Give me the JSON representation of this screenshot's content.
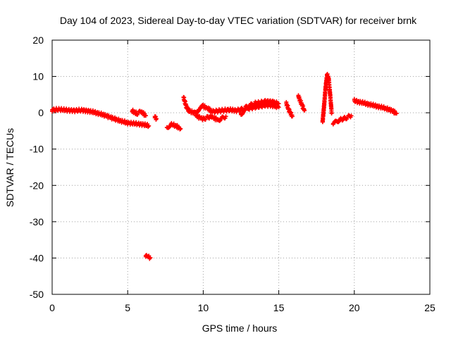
{
  "chart_data": {
    "type": "scatter",
    "title": "Day 104 of 2023, Sidereal Day-to-day VTEC variation (SDTVAR) for receiver brnk",
    "xlabel": "GPS time / hours",
    "ylabel": "SDTVAR / TECUs",
    "xlim": [
      0,
      25
    ],
    "ylim": [
      -50,
      20
    ],
    "xticks": [
      0,
      5,
      10,
      15,
      20,
      25
    ],
    "yticks": [
      -50,
      -40,
      -30,
      -20,
      -10,
      0,
      10,
      20
    ],
    "xtick_labels": [
      "0",
      "5",
      "10",
      "15",
      "20",
      "25"
    ],
    "ytick_labels": [
      "-50",
      "-40",
      "-30",
      "-20",
      "-10",
      "0",
      "10",
      "20"
    ],
    "grid": true,
    "marker": "plus",
    "series": [
      {
        "name": "SDTVAR",
        "color": "#ff0000",
        "segments": [
          {
            "x": [
              0.0,
              0.5,
              1.0,
              1.5,
              2.0,
              2.5,
              3.0,
              3.5,
              4.0,
              4.5,
              5.0,
              5.5,
              6.0,
              6.4
            ],
            "y": [
              0.8,
              0.9,
              0.7,
              0.6,
              0.7,
              0.4,
              -0.1,
              -0.7,
              -1.5,
              -2.2,
              -2.8,
              -3.0,
              -3.2,
              -3.6
            ]
          },
          {
            "x": [
              5.3,
              5.6,
              5.9,
              6.2
            ],
            "y": [
              0.5,
              -0.2,
              0.3,
              -0.8
            ]
          },
          {
            "x": [
              6.2,
              6.5
            ],
            "y": [
              -39.3,
              -39.9
            ]
          },
          {
            "x": [
              6.8,
              6.9
            ],
            "y": [
              -1.0,
              -1.6
            ]
          },
          {
            "x": [
              7.6,
              7.9,
              8.2,
              8.5
            ],
            "y": [
              -4.0,
              -3.2,
              -3.6,
              -4.4
            ]
          },
          {
            "x": [
              8.7,
              8.9,
              9.1,
              9.4,
              9.7,
              10.0,
              10.3,
              10.6,
              11.0,
              11.4,
              11.8,
              12.2,
              12.6,
              13.0,
              13.4,
              13.8,
              14.2,
              14.6,
              15.0
            ],
            "y": [
              4.2,
              1.4,
              0.4,
              0.0,
              0.9,
              1.8,
              1.2,
              0.3,
              0.5,
              0.7,
              0.8,
              0.6,
              1.0,
              1.8,
              2.6,
              2.8,
              3.2,
              3.0,
              2.5
            ]
          },
          {
            "x": [
              9.5,
              10.0,
              10.5,
              11.0,
              11.5
            ],
            "y": [
              -0.8,
              -1.7,
              -1.0,
              -2.0,
              -1.0
            ]
          },
          {
            "x": [
              12.5,
              13.0,
              13.5,
              14.0,
              14.5,
              15.0
            ],
            "y": [
              -0.2,
              1.2,
              1.6,
              2.0,
              2.1,
              1.5
            ]
          },
          {
            "x": [
              15.5,
              15.7,
              15.9
            ],
            "y": [
              2.5,
              0.5,
              -1.0
            ]
          },
          {
            "x": [
              16.3,
              16.5,
              16.7
            ],
            "y": [
              4.5,
              2.5,
              0.6
            ]
          },
          {
            "x": [
              17.9,
              18.0,
              18.1,
              18.2,
              18.3,
              18.4,
              18.5
            ],
            "y": [
              -2.5,
              2.0,
              7.0,
              10.5,
              9.5,
              5.0,
              0.0
            ]
          },
          {
            "x": [
              18.6,
              19.0,
              19.4,
              19.8
            ],
            "y": [
              -3.0,
              -2.0,
              -1.5,
              -0.8
            ]
          },
          {
            "x": [
              20.0,
              20.5,
              21.0,
              21.5,
              22.0,
              22.5,
              22.8
            ],
            "y": [
              3.3,
              2.8,
              2.3,
              1.8,
              1.3,
              0.6,
              -0.2
            ]
          }
        ]
      }
    ]
  }
}
